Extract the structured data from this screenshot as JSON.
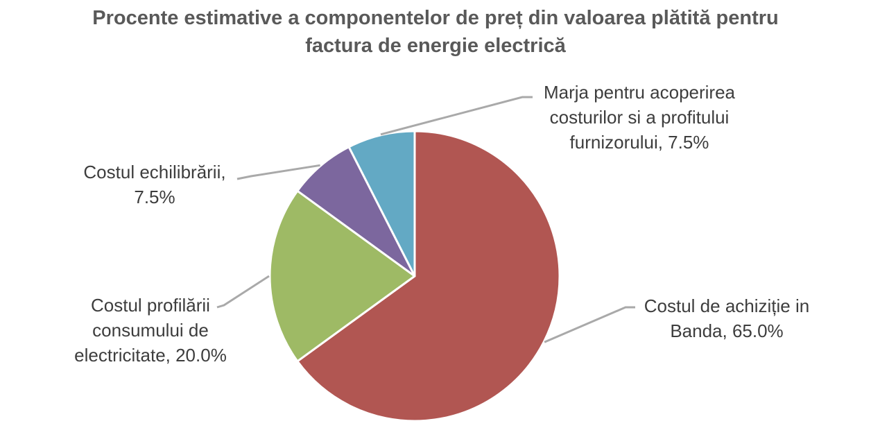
{
  "title": {
    "line1": "Procente estimative a componentelor de preț din valoarea plătită pentru",
    "line2": "factura de energie electrică"
  },
  "chart_data": {
    "type": "pie",
    "title": "Procente estimative a componentelor de preț din valoarea plătită pentru factura de energie electrică",
    "unit": "%",
    "start_angle_deg": 0,
    "direction": "clockwise",
    "legend": "none",
    "slices": [
      {
        "name": "Costul de achiziție in Banda",
        "value": 65.0,
        "color": "#B15652",
        "label_lines": [
          "Costul de achiziție in",
          "Banda, 65.0%"
        ]
      },
      {
        "name": "Costul profilării consumului de electricitate",
        "value": 20.0,
        "color": "#9EBA65",
        "label_lines": [
          "Costul profilării",
          "consumului de",
          "electricitate, 20.0%"
        ]
      },
      {
        "name": "Costul echilibrării",
        "value": 7.5,
        "color": "#7C679E",
        "label_lines": [
          "Costul echilibrării,",
          "7.5%"
        ]
      },
      {
        "name": "Marja pentru acoperirea costurilor si a profitului furnizorului",
        "value": 7.5,
        "color": "#63A9C4",
        "label_lines": [
          "Marja pentru acoperirea",
          "costurilor si a profitului",
          "furnizorului, 7.5%"
        ]
      }
    ],
    "colors": {
      "title_text": "#595959",
      "label_text": "#3D3D3D",
      "leader_line": "#A9A9A9",
      "slice_border": "#FFFFFF",
      "background": "#FFFFFF"
    }
  }
}
